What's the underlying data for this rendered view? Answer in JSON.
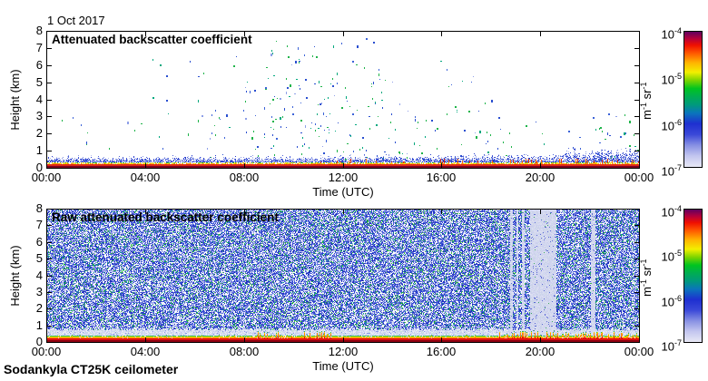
{
  "figure": {
    "date_label": "1 Oct 2017",
    "footer_label": "Sodankyla CT25K ceilometer",
    "time_axis": {
      "label": "Time (UTC)",
      "tick_labels": [
        "00:00",
        "04:00",
        "08:00",
        "12:00",
        "16:00",
        "20:00",
        "00:00"
      ]
    },
    "height_axis": {
      "label": "Height (km)",
      "tick_labels": [
        "0",
        "1",
        "2",
        "3",
        "4",
        "5",
        "6",
        "7",
        "8"
      ]
    },
    "colorbar": {
      "tick_base": "10",
      "tick_exponents": [
        "-4",
        "-5",
        "-6",
        "-7"
      ],
      "unit_parts": [
        [
          "m",
          "-1"
        ],
        [
          "sr",
          "-1"
        ]
      ],
      "gradient_stops": [
        [
          0.0,
          "#e8e8f5"
        ],
        [
          0.08,
          "#c3c6ef"
        ],
        [
          0.16,
          "#8790e3"
        ],
        [
          0.24,
          "#3b49d8"
        ],
        [
          0.32,
          "#1e2fd0"
        ],
        [
          0.4,
          "#0a76bb"
        ],
        [
          0.46,
          "#00997c"
        ],
        [
          0.52,
          "#00ad52"
        ],
        [
          0.58,
          "#00c420"
        ],
        [
          0.64,
          "#7bd400"
        ],
        [
          0.7,
          "#f2ef00"
        ],
        [
          0.77,
          "#ffb400"
        ],
        [
          0.84,
          "#ff5a00"
        ],
        [
          0.9,
          "#f01000"
        ],
        [
          0.95,
          "#b4003c"
        ],
        [
          1.0,
          "#600060"
        ]
      ]
    }
  },
  "chart_data": [
    {
      "type": "heatmap",
      "panel": "top",
      "title": "Attenuated backscatter coefficient",
      "xlabel": "Time (UTC)",
      "ylabel": "Height (km)",
      "x_range_hours": [
        0,
        24
      ],
      "x_tick_hours": [
        0,
        4,
        8,
        12,
        16,
        20,
        24
      ],
      "y_range_km": [
        0,
        8
      ],
      "ylim": [
        0,
        8
      ],
      "colorbar_range": [
        "1e-7",
        "1e-4"
      ],
      "colorbar_unit": "m-1 sr-1",
      "description": "Mostly clear sky; sparse green/blue aerosol-cloud specks, densest 08:00-14:00 between 0.5 and 5.5 km with a few up to 7.5 km; strong shallow boundary layer below ~0.5 km all day (red/orange near surface, blue fuzz above) thickening after 12:00 and strongest 19:00-24:00.",
      "seed": 20171001,
      "background": "#ffffff",
      "speck_palette": [
        "#1fb44a",
        "#00a87e",
        "#2a4fd0",
        "#3c63d8",
        "#8fa0e8"
      ],
      "speck_clusters": [
        {
          "t0": 0.3,
          "t1": 6.0,
          "h0": 0.6,
          "h1": 4.2,
          "count": 16
        },
        {
          "t0": 4.0,
          "t1": 8.0,
          "h0": 4.5,
          "h1": 6.8,
          "count": 8
        },
        {
          "t0": 6.0,
          "t1": 8.0,
          "h0": 0.5,
          "h1": 4.0,
          "count": 18
        },
        {
          "t0": 8.0,
          "t1": 14.0,
          "h0": 0.4,
          "h1": 5.5,
          "count": 150
        },
        {
          "t0": 8.5,
          "t1": 13.5,
          "h0": 5.5,
          "h1": 7.6,
          "count": 28
        },
        {
          "t0": 14.0,
          "t1": 18.5,
          "h0": 0.4,
          "h1": 4.0,
          "count": 48
        },
        {
          "t0": 15.5,
          "t1": 17.5,
          "h0": 4.5,
          "h1": 6.5,
          "count": 7
        },
        {
          "t0": 18.5,
          "t1": 22.0,
          "h0": 0.5,
          "h1": 2.8,
          "count": 14
        },
        {
          "t0": 22.0,
          "t1": 24.0,
          "h0": 0.5,
          "h1": 3.2,
          "count": 26
        }
      ],
      "surface_layer": {
        "strata": [
          "#7d0022",
          "#e02818",
          "#ff9100",
          "#ffe000",
          "#3fbf3f"
        ],
        "fuzz_colors": [
          "#2a3fcf",
          "#4d62d8",
          "#8b9ae6",
          "#b7c0ef"
        ],
        "bump_start_hour": 11,
        "strong_hour": 21
      }
    },
    {
      "type": "heatmap",
      "panel": "bottom",
      "title": "Raw attenuated backscatter coefficient",
      "xlabel": "Time (UTC)",
      "ylabel": "Height (km)",
      "x_range_hours": [
        0,
        24
      ],
      "x_tick_hours": [
        0,
        4,
        8,
        12,
        16,
        20,
        24
      ],
      "y_range_km": [
        0,
        8
      ],
      "ylim": [
        0,
        8
      ],
      "colorbar_range": [
        "1e-7",
        "1e-4"
      ],
      "colorbar_unit": "m-1 sr-1",
      "description": "Dense blue/green instrument noise filling 0-8 km all day; pale vertical gap bands near 18:50, 19:05, 19:20, a wide gap 19:35-20:40 and a narrow gap ~22:10; pale quiet layer 0.3-0.8 km; stratified red/orange/yellow/green surface return below 0.3 km with stronger bumps 08:30-11:30 and after 18:20.",
      "seed": 777,
      "background": "#ffffff",
      "noise": {
        "blue_shades": [
          "#1f2fb8",
          "#2a3fd0",
          "#3c55d8",
          "#5a6cdc",
          "#7585e0"
        ],
        "light_shades": [
          "#9fa9ea",
          "#c8cfee",
          "#dfe3f4"
        ],
        "green_shades": [
          "#17a93c",
          "#00a37a",
          "#3fc13f"
        ],
        "p_white": 0.23,
        "p_blue": 0.5,
        "p_light": 0.17,
        "p_green": 0.1
      },
      "pale_low_band_km": [
        0.3,
        0.78
      ],
      "pale_bands_hours": [
        {
          "t0": 18.78,
          "t1": 18.88
        },
        {
          "t0": 19.02,
          "t1": 19.12
        },
        {
          "t0": 19.26,
          "t1": 19.36
        },
        {
          "t0": 19.6,
          "t1": 20.65
        },
        {
          "t0": 22.05,
          "t1": 22.25
        }
      ],
      "surface_layer": {
        "strata": [
          "#8b0010",
          "#e01010",
          "#ff8800",
          "#ffe000",
          "#2db84d"
        ],
        "bump_hours": [
          [
            8.5,
            11.5
          ],
          [
            18.3,
            24.0
          ]
        ]
      }
    }
  ]
}
